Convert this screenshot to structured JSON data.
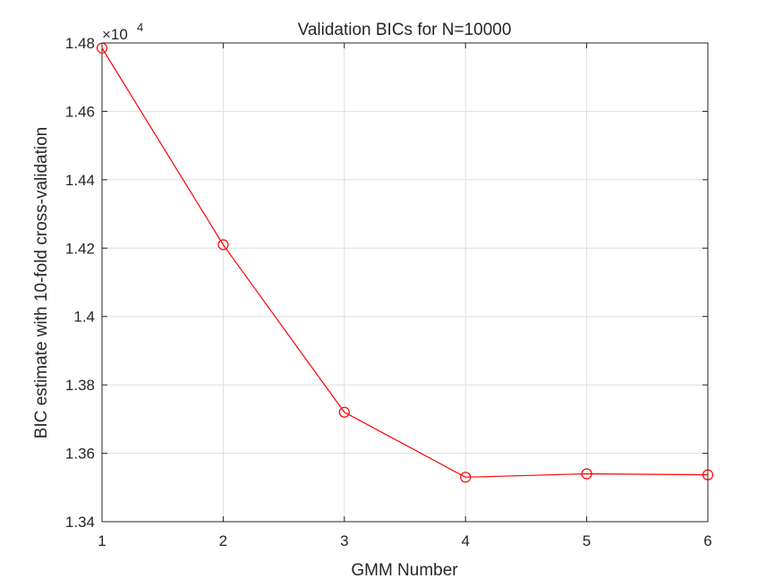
{
  "chart_data": {
    "type": "line",
    "title": "Validation BICs for N=10000",
    "xlabel": "GMM Number",
    "ylabel": "BIC estimate with 10-fold cross-validation",
    "exponent_label": {
      "base": "×10",
      "power": "4"
    },
    "x": [
      1,
      2,
      3,
      4,
      5,
      6
    ],
    "series": [
      {
        "values": [
          14785,
          14210,
          13720,
          13530,
          13540,
          13537
        ],
        "color": "#ff0000",
        "marker": "circle"
      }
    ],
    "xlim": [
      1,
      6
    ],
    "ylim": [
      13400,
      14800
    ],
    "xticks": [
      1,
      2,
      3,
      4,
      5,
      6
    ],
    "xtick_labels": [
      "1",
      "2",
      "3",
      "4",
      "5",
      "6"
    ],
    "yticks": [
      13400,
      13600,
      13800,
      14000,
      14200,
      14400,
      14600,
      14800
    ],
    "ytick_labels": [
      "1.34",
      "1.36",
      "1.38",
      "1.4",
      "1.42",
      "1.44",
      "1.46",
      "1.48"
    ],
    "grid": true,
    "legend": false
  }
}
